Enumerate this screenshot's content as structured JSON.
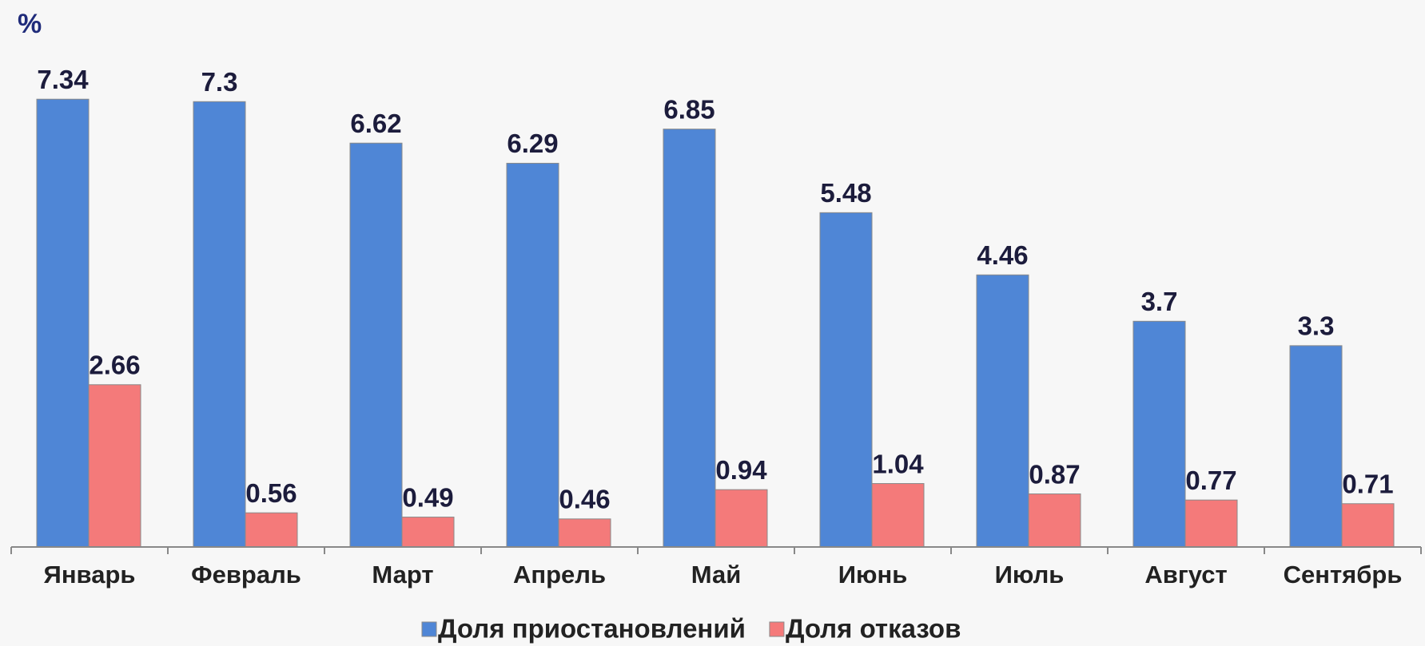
{
  "chart_data": {
    "type": "bar",
    "y_label": "%",
    "categories": [
      "Январь",
      "Февраль",
      "Март",
      "Апрель",
      "Май",
      "Июнь",
      "Июль",
      "Август",
      "Сентябрь"
    ],
    "series": [
      {
        "name": "Доля приостановлений",
        "color": "#4f86d6",
        "values": [
          7.34,
          7.3,
          6.62,
          6.29,
          6.85,
          5.48,
          4.46,
          3.7,
          3.3
        ]
      },
      {
        "name": "Доля отказов",
        "color": "#f47a7a",
        "values": [
          2.66,
          0.56,
          0.49,
          0.46,
          0.94,
          1.04,
          0.87,
          0.77,
          0.71
        ]
      }
    ],
    "legend": "bottom"
  }
}
